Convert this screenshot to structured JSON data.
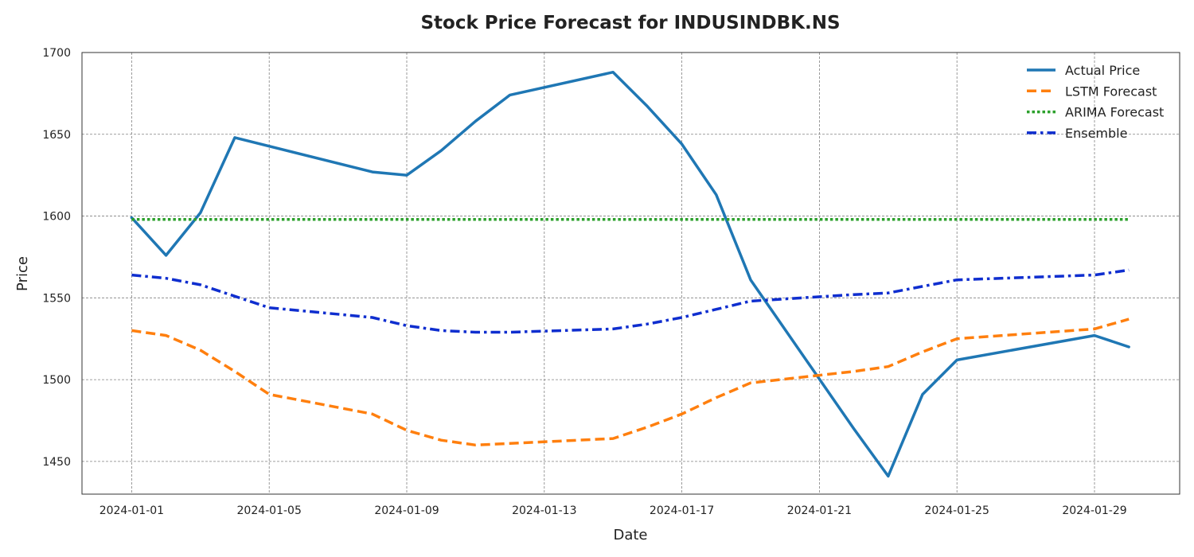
{
  "chart_data": {
    "type": "line",
    "title": "Stock Price Forecast for INDUSINDBK.NS",
    "xlabel": "Date",
    "ylabel": "Price",
    "ylim": [
      1430,
      1700
    ],
    "yticks": [
      1450,
      1500,
      1550,
      1600,
      1650,
      1700
    ],
    "xlim": [
      "2023-12-31",
      "2024-01-31"
    ],
    "xticks": [
      "2024-01-01",
      "2024-01-05",
      "2024-01-09",
      "2024-01-13",
      "2024-01-17",
      "2024-01-21",
      "2024-01-25",
      "2024-01-29"
    ],
    "grid": true,
    "legend_position": "top-right",
    "series": [
      {
        "name": "Actual Price",
        "color": "#1f77b4",
        "style": "solid",
        "points": [
          [
            "2024-01-01",
            1599
          ],
          [
            "2024-01-02",
            1576
          ],
          [
            "2024-01-03",
            1602
          ],
          [
            "2024-01-04",
            1648
          ],
          [
            "2024-01-08",
            1627
          ],
          [
            "2024-01-09",
            1625
          ],
          [
            "2024-01-10",
            1640
          ],
          [
            "2024-01-11",
            1658
          ],
          [
            "2024-01-12",
            1674
          ],
          [
            "2024-01-15",
            1688
          ],
          [
            "2024-01-16",
            1667
          ],
          [
            "2024-01-17",
            1644
          ],
          [
            "2024-01-18",
            1613
          ],
          [
            "2024-01-19",
            1561
          ],
          [
            "2024-01-22",
            1470
          ],
          [
            "2024-01-23",
            1441
          ],
          [
            "2024-01-24",
            1491
          ],
          [
            "2024-01-25",
            1512
          ],
          [
            "2024-01-29",
            1527
          ],
          [
            "2024-01-30",
            1520
          ]
        ]
      },
      {
        "name": "LSTM Forecast",
        "color": "#ff7f0e",
        "style": "dashed",
        "points": [
          [
            "2024-01-01",
            1530
          ],
          [
            "2024-01-02",
            1527
          ],
          [
            "2024-01-03",
            1518
          ],
          [
            "2024-01-04",
            1505
          ],
          [
            "2024-01-05",
            1491
          ],
          [
            "2024-01-08",
            1479
          ],
          [
            "2024-01-09",
            1469
          ],
          [
            "2024-01-10",
            1463
          ],
          [
            "2024-01-11",
            1460
          ],
          [
            "2024-01-12",
            1461
          ],
          [
            "2024-01-15",
            1464
          ],
          [
            "2024-01-16",
            1471
          ],
          [
            "2024-01-17",
            1479
          ],
          [
            "2024-01-18",
            1489
          ],
          [
            "2024-01-19",
            1498
          ],
          [
            "2024-01-22",
            1505
          ],
          [
            "2024-01-23",
            1508
          ],
          [
            "2024-01-24",
            1517
          ],
          [
            "2024-01-25",
            1525
          ],
          [
            "2024-01-29",
            1531
          ],
          [
            "2024-01-30",
            1537
          ]
        ]
      },
      {
        "name": "ARIMA Forecast",
        "color": "#2ca02c",
        "style": "dotted",
        "points": [
          [
            "2024-01-01",
            1598
          ],
          [
            "2024-01-30",
            1598
          ]
        ]
      },
      {
        "name": "Ensemble",
        "color": "#0f2ecf",
        "style": "dashdot",
        "points": [
          [
            "2024-01-01",
            1564
          ],
          [
            "2024-01-02",
            1562
          ],
          [
            "2024-01-03",
            1558
          ],
          [
            "2024-01-04",
            1551
          ],
          [
            "2024-01-05",
            1544
          ],
          [
            "2024-01-08",
            1538
          ],
          [
            "2024-01-09",
            1533
          ],
          [
            "2024-01-10",
            1530
          ],
          [
            "2024-01-11",
            1529
          ],
          [
            "2024-01-12",
            1529
          ],
          [
            "2024-01-15",
            1531
          ],
          [
            "2024-01-16",
            1534
          ],
          [
            "2024-01-17",
            1538
          ],
          [
            "2024-01-18",
            1543
          ],
          [
            "2024-01-19",
            1548
          ],
          [
            "2024-01-22",
            1552
          ],
          [
            "2024-01-23",
            1553
          ],
          [
            "2024-01-24",
            1557
          ],
          [
            "2024-01-25",
            1561
          ],
          [
            "2024-01-29",
            1564
          ],
          [
            "2024-01-30",
            1567
          ]
        ]
      }
    ]
  }
}
